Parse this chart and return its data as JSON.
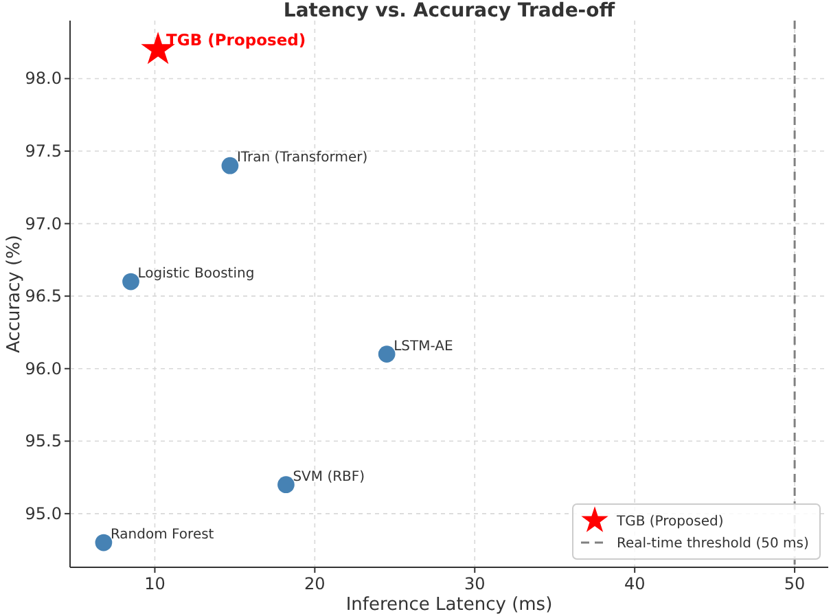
{
  "chart_data": {
    "type": "scatter",
    "title": "Latency vs. Accuracy Trade-off",
    "xlabel": "Inference Latency (ms)",
    "ylabel": "Accuracy (%)",
    "xlim": [
      4.7,
      52.1
    ],
    "xticks": [
      10,
      20,
      30,
      40,
      50
    ],
    "ylim": [
      94.63,
      98.4
    ],
    "yticks": [
      {
        "value": 95,
        "label": "95.0"
      },
      95.5,
      {
        "value": 96,
        "label": "96.0"
      },
      96.5,
      {
        "value": 97,
        "label": "97.0"
      },
      97.5,
      {
        "value": 98,
        "label": "98.0"
      }
    ],
    "grid": true,
    "legend": "bottom right",
    "marker": "circle",
    "series": [
      {
        "name": "TGB (Proposed)",
        "color": "#ff0000",
        "marker": "star",
        "x": [
          10.2
        ],
        "values": [
          98.2
        ]
      },
      {
        "name": "ITran (Transformer)",
        "color": "#4682b4",
        "x": [
          14.7
        ],
        "values": [
          97.4
        ]
      },
      {
        "name": "Logistic Boosting",
        "color": "#4682b4",
        "x": [
          8.5
        ],
        "values": [
          96.6
        ]
      },
      {
        "name": "LSTM-AE",
        "color": "#4682b4",
        "x": [
          24.5
        ],
        "values": [
          96.1
        ]
      },
      {
        "name": "SVM (RBF)",
        "color": "#4682b4",
        "x": [
          18.2
        ],
        "values": [
          95.2
        ]
      },
      {
        "name": "Random Forest",
        "color": "#4682b4",
        "x": [
          6.8
        ],
        "values": [
          94.8
        ]
      }
    ],
    "ref_lines": [
      {
        "axis": "x",
        "value": 50,
        "label": "Real-time threshold (50 ms)",
        "color": "#808080",
        "line_style": "dashed"
      }
    ]
  }
}
